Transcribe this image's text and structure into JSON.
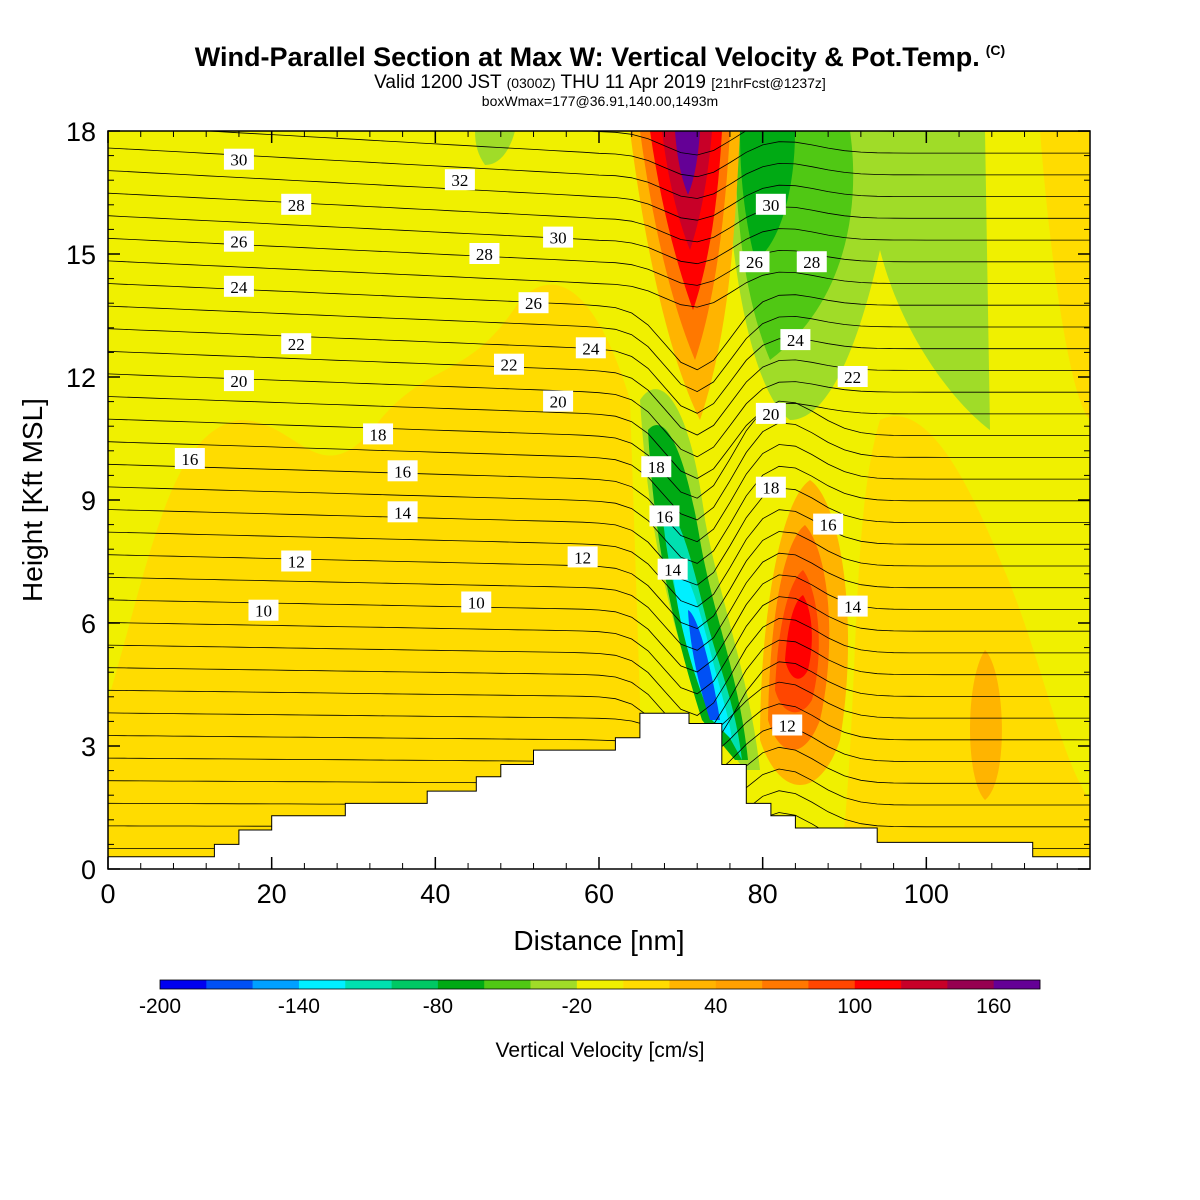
{
  "header": {
    "title": "Wind-Parallel Section at Max W: Vertical Velocity & Pot.Temp.",
    "title_tag": "(C)",
    "valid_prefix": "Valid 1200 JST",
    "valid_utc": "(0300Z)",
    "valid_date": "THU 11 Apr 2019",
    "forecast_tag": "[21hrFcst@1237z]",
    "box_info": "boxWmax=177@36.91,140.00,1493m"
  },
  "chart_data": {
    "type": "heatmap",
    "xlabel": "Distance [nm]",
    "ylabel": "Height [Kft MSL]",
    "xlim": [
      0,
      120
    ],
    "ylim": [
      0,
      18
    ],
    "x_ticks": [
      0,
      20,
      40,
      60,
      80,
      100
    ],
    "y_ticks": [
      0,
      3,
      6,
      9,
      12,
      15,
      18
    ],
    "x_tick_labels": [
      "0",
      "20",
      "40",
      "60",
      "80",
      "100"
    ],
    "y_tick_labels": [
      "0",
      "3",
      "6",
      "9",
      "12",
      "15",
      "18"
    ],
    "colorbar": {
      "label": "Vertical Velocity [cm/s]",
      "min": -200,
      "max": 180,
      "step": 20,
      "tick_values": [
        -200,
        -140,
        -80,
        -20,
        40,
        100,
        160
      ],
      "tick_labels": [
        "-200",
        "-140",
        "-80",
        "-20",
        "40",
        "100",
        "160"
      ],
      "colors": [
        "#0000f0",
        "#0050f5",
        "#00a0ff",
        "#00f0ff",
        "#00e0b0",
        "#00c864",
        "#00aa14",
        "#50c814",
        "#a0dc28",
        "#f0f000",
        "#ffdc00",
        "#ffb400",
        "#ffa000",
        "#ff7800",
        "#ff4600",
        "#ff0000",
        "#c80028",
        "#960050",
        "#640096"
      ]
    },
    "terrain_profile": [
      [
        0,
        0.3
      ],
      [
        13,
        0.3
      ],
      [
        13,
        0.6
      ],
      [
        16,
        0.6
      ],
      [
        16,
        0.95
      ],
      [
        20,
        0.95
      ],
      [
        20,
        1.3
      ],
      [
        29,
        1.3
      ],
      [
        29,
        1.6
      ],
      [
        39,
        1.6
      ],
      [
        39,
        1.9
      ],
      [
        45,
        1.9
      ],
      [
        45,
        2.25
      ],
      [
        48,
        2.25
      ],
      [
        48,
        2.55
      ],
      [
        52,
        2.55
      ],
      [
        52,
        2.9
      ],
      [
        62,
        2.9
      ],
      [
        62,
        3.2
      ],
      [
        65,
        3.2
      ],
      [
        65,
        3.8
      ],
      [
        71,
        3.8
      ],
      [
        71,
        3.55
      ],
      [
        75,
        3.55
      ],
      [
        75,
        2.55
      ],
      [
        78,
        2.55
      ],
      [
        78,
        1.6
      ],
      [
        81,
        1.6
      ],
      [
        81,
        1.3
      ],
      [
        84,
        1.3
      ],
      [
        84,
        1.0
      ],
      [
        94,
        1.0
      ],
      [
        94,
        0.65
      ],
      [
        113,
        0.65
      ],
      [
        113,
        0.3
      ],
      [
        120,
        0.3
      ]
    ],
    "contour_labels": [
      {
        "text": "30",
        "x": 16,
        "y": 17.3
      },
      {
        "text": "32",
        "x": 43,
        "y": 16.8
      },
      {
        "text": "28",
        "x": 23,
        "y": 16.2
      },
      {
        "text": "26",
        "x": 16,
        "y": 15.3
      },
      {
        "text": "28",
        "x": 46,
        "y": 15.0
      },
      {
        "text": "30",
        "x": 55,
        "y": 15.4
      },
      {
        "text": "24",
        "x": 16,
        "y": 14.2
      },
      {
        "text": "26",
        "x": 52,
        "y": 13.8
      },
      {
        "text": "22",
        "x": 23,
        "y": 12.8
      },
      {
        "text": "24",
        "x": 59,
        "y": 12.7
      },
      {
        "text": "22",
        "x": 49,
        "y": 12.3
      },
      {
        "text": "20",
        "x": 16,
        "y": 11.9
      },
      {
        "text": "20",
        "x": 55,
        "y": 11.4
      },
      {
        "text": "18",
        "x": 33,
        "y": 10.6
      },
      {
        "text": "16",
        "x": 10,
        "y": 10.0
      },
      {
        "text": "16",
        "x": 36,
        "y": 9.7
      },
      {
        "text": "14",
        "x": 36,
        "y": 8.7
      },
      {
        "text": "12",
        "x": 23,
        "y": 7.5
      },
      {
        "text": "12",
        "x": 58,
        "y": 7.6
      },
      {
        "text": "10",
        "x": 19,
        "y": 6.3
      },
      {
        "text": "10",
        "x": 45,
        "y": 6.5
      },
      {
        "text": "30",
        "x": 81,
        "y": 16.2
      },
      {
        "text": "26",
        "x": 79,
        "y": 14.8
      },
      {
        "text": "28",
        "x": 86,
        "y": 14.8
      },
      {
        "text": "24",
        "x": 84,
        "y": 12.9
      },
      {
        "text": "22",
        "x": 91,
        "y": 12.0
      },
      {
        "text": "20",
        "x": 81,
        "y": 11.1
      },
      {
        "text": "18",
        "x": 67,
        "y": 9.8
      },
      {
        "text": "18",
        "x": 81,
        "y": 9.3
      },
      {
        "text": "16",
        "x": 68,
        "y": 8.6
      },
      {
        "text": "16",
        "x": 88,
        "y": 8.4
      },
      {
        "text": "14",
        "x": 69,
        "y": 7.3
      },
      {
        "text": "14",
        "x": 91,
        "y": 6.4
      },
      {
        "text": "12",
        "x": 83,
        "y": 3.5
      }
    ]
  }
}
